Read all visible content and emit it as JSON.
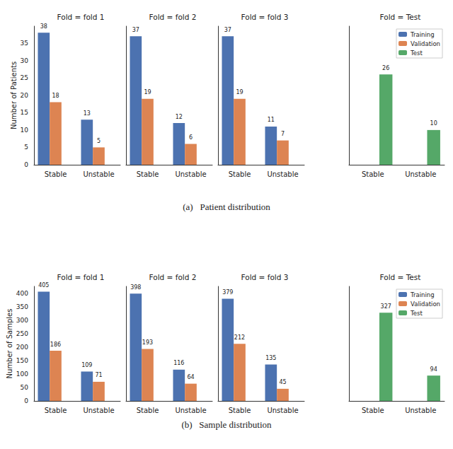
{
  "captions": [
    "(a)   Patient distribution",
    "(b)   Sample distribution"
  ],
  "chart_data": [
    {
      "type": "bar",
      "title": "Fold = fold 1",
      "y_label": "Number of Patients",
      "categories": [
        "Stable",
        "Unstable"
      ],
      "series": [
        {
          "name": "Training",
          "color": "#4c72b0",
          "values": [
            38,
            13
          ]
        },
        {
          "name": "Validation",
          "color": "#dd8452",
          "values": [
            18,
            5
          ]
        },
        {
          "name": "Test",
          "color": "#55a868",
          "values": [
            null,
            null
          ]
        }
      ],
      "ylim": [
        0,
        39.9
      ],
      "yticks": [
        0,
        5,
        10,
        15,
        20,
        25,
        30,
        35
      ],
      "grid": false,
      "data_labels": true
    },
    {
      "type": "bar",
      "title": "Fold = fold 2",
      "categories": [
        "Stable",
        "Unstable"
      ],
      "series": [
        {
          "name": "Training",
          "color": "#4c72b0",
          "values": [
            37,
            12
          ]
        },
        {
          "name": "Validation",
          "color": "#dd8452",
          "values": [
            19,
            6
          ]
        },
        {
          "name": "Test",
          "color": "#55a868",
          "values": [
            null,
            null
          ]
        }
      ],
      "ylim": [
        0,
        39.9
      ],
      "yticks": [
        0,
        5,
        10,
        15,
        20,
        25,
        30,
        35
      ],
      "grid": false,
      "data_labels": true,
      "tick_labels": "x"
    },
    {
      "type": "bar",
      "title": "Fold = fold 3",
      "categories": [
        "Stable",
        "Unstable"
      ],
      "series": [
        {
          "name": "Training",
          "color": "#4c72b0",
          "values": [
            37,
            11
          ]
        },
        {
          "name": "Validation",
          "color": "#dd8452",
          "values": [
            19,
            7
          ]
        },
        {
          "name": "Test",
          "color": "#55a868",
          "values": [
            null,
            null
          ]
        }
      ],
      "ylim": [
        0,
        39.9
      ],
      "yticks": [
        0,
        5,
        10,
        15,
        20,
        25,
        30,
        35
      ],
      "grid": false,
      "data_labels": true,
      "tick_labels": "x"
    },
    {
      "type": "bar",
      "title": "Fold = Test",
      "categories": [
        "Stable",
        "Unstable"
      ],
      "series": [
        {
          "name": "Training",
          "color": "#4c72b0",
          "values": [
            null,
            null
          ]
        },
        {
          "name": "Validation",
          "color": "#dd8452",
          "values": [
            null,
            null
          ]
        },
        {
          "name": "Test",
          "color": "#55a868",
          "values": [
            26,
            10
          ]
        }
      ],
      "ylim": [
        0,
        39.9
      ],
      "yticks": [
        0,
        5,
        10,
        15,
        20,
        25,
        30,
        35
      ],
      "grid": false,
      "data_labels": true,
      "tick_labels": "x",
      "legend": "upper right"
    },
    {
      "type": "bar",
      "title": "Fold = fold 1",
      "y_label": "Number of Samples",
      "categories": [
        "Stable",
        "Unstable"
      ],
      "series": [
        {
          "name": "Training",
          "color": "#4c72b0",
          "values": [
            405,
            109
          ]
        },
        {
          "name": "Validation",
          "color": "#dd8452",
          "values": [
            186,
            71
          ]
        },
        {
          "name": "Test",
          "color": "#55a868",
          "values": [
            null,
            null
          ]
        }
      ],
      "ylim": [
        0,
        425
      ],
      "yticks": [
        0,
        50,
        100,
        150,
        200,
        250,
        300,
        350,
        400
      ],
      "grid": false,
      "data_labels": true
    },
    {
      "type": "bar",
      "title": "Fold = fold 2",
      "categories": [
        "Stable",
        "Unstable"
      ],
      "series": [
        {
          "name": "Training",
          "color": "#4c72b0",
          "values": [
            398,
            116
          ]
        },
        {
          "name": "Validation",
          "color": "#dd8452",
          "values": [
            193,
            64
          ]
        },
        {
          "name": "Test",
          "color": "#55a868",
          "values": [
            null,
            null
          ]
        }
      ],
      "ylim": [
        0,
        425
      ],
      "yticks": [
        0,
        50,
        100,
        150,
        200,
        250,
        300,
        350,
        400
      ],
      "grid": false,
      "data_labels": true,
      "tick_labels": "x"
    },
    {
      "type": "bar",
      "title": "Fold = fold 3",
      "categories": [
        "Stable",
        "Unstable"
      ],
      "series": [
        {
          "name": "Training",
          "color": "#4c72b0",
          "values": [
            379,
            135
          ]
        },
        {
          "name": "Validation",
          "color": "#dd8452",
          "values": [
            212,
            45
          ]
        },
        {
          "name": "Test",
          "color": "#55a868",
          "values": [
            null,
            null
          ]
        }
      ],
      "ylim": [
        0,
        425
      ],
      "yticks": [
        0,
        50,
        100,
        150,
        200,
        250,
        300,
        350,
        400
      ],
      "grid": false,
      "data_labels": true,
      "tick_labels": "x"
    },
    {
      "type": "bar",
      "title": "Fold = Test",
      "categories": [
        "Stable",
        "Unstable"
      ],
      "series": [
        {
          "name": "Training",
          "color": "#4c72b0",
          "values": [
            null,
            null
          ]
        },
        {
          "name": "Validation",
          "color": "#dd8452",
          "values": [
            null,
            null
          ]
        },
        {
          "name": "Test",
          "color": "#55a868",
          "values": [
            327,
            94
          ]
        }
      ],
      "ylim": [
        0,
        425
      ],
      "yticks": [
        0,
        50,
        100,
        150,
        200,
        250,
        300,
        350,
        400
      ],
      "grid": false,
      "data_labels": true,
      "tick_labels": "x",
      "legend": "upper right"
    }
  ]
}
